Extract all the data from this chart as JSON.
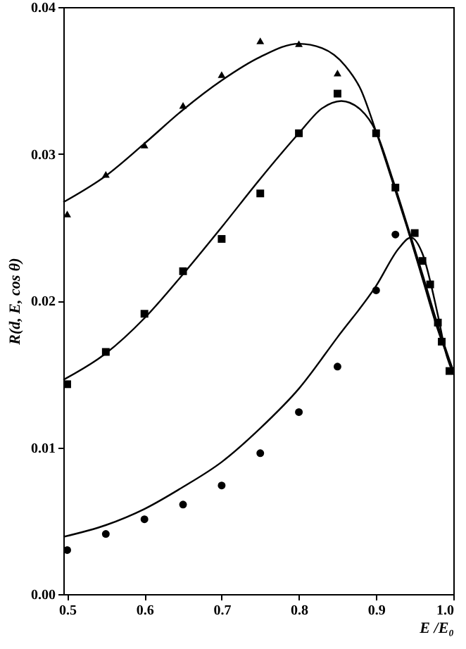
{
  "chart_data": {
    "type": "scatter",
    "xlabel": "E /E₀",
    "ylabel": "R(d, E, cos θ)",
    "xlim": [
      0.495,
      1.0
    ],
    "xticks": [
      0.5,
      0.6,
      0.7,
      0.8,
      0.9,
      {
        "value": 1.0,
        "label": "1.0"
      }
    ],
    "ylim": [
      0,
      0.04
    ],
    "yticks": [
      {
        "value": 0,
        "label": "0.00"
      },
      {
        "value": 0.01,
        "label": "0.01"
      },
      {
        "value": 0.02,
        "label": "0.02"
      },
      {
        "value": 0.03,
        "label": "0.03"
      },
      {
        "value": 0.04,
        "label": "0.04"
      }
    ],
    "grid": false,
    "series": [
      {
        "marker": "triangle",
        "color": "#000000",
        "x": [
          0.5,
          0.55,
          0.6,
          0.65,
          0.7,
          0.75,
          0.8,
          0.85
        ],
        "values": [
          0.0259,
          0.0286,
          0.0306,
          0.0333,
          0.0354,
          0.0377,
          0.0375,
          0.0355
        ]
      },
      {
        "marker": "square",
        "color": "#000000",
        "x": [
          0.5,
          0.55,
          0.6,
          0.65,
          0.7,
          0.75,
          0.8,
          0.85,
          0.9,
          0.925,
          0.95,
          0.96,
          0.97,
          0.98,
          0.985,
          0.995
        ],
        "values": [
          0.0143,
          0.0165,
          0.0191,
          0.022,
          0.0242,
          0.0273,
          0.0314,
          0.0341,
          0.0314,
          0.0277,
          0.0246,
          0.0227,
          0.0211,
          0.0185,
          0.0172,
          0.0152
        ]
      },
      {
        "marker": "circle",
        "color": "#000000",
        "x": [
          0.5,
          0.55,
          0.6,
          0.65,
          0.7,
          0.75,
          0.8,
          0.85,
          0.9,
          0.925
        ],
        "values": [
          0.003,
          0.0041,
          0.0051,
          0.0061,
          0.0074,
          0.0096,
          0.0124,
          0.0155,
          0.0207,
          0.0245
        ]
      },
      {
        "type": "line",
        "marker": "none",
        "line_style": "solid",
        "color": "#000000",
        "x": [
          0.495,
          0.55,
          0.6,
          0.65,
          0.7,
          0.75,
          0.8,
          0.83,
          0.86,
          0.88,
          0.9,
          0.92,
          0.94,
          0.96,
          0.98,
          1.0
        ],
        "values": [
          0.0267,
          0.0285,
          0.0307,
          0.033,
          0.035,
          0.0366,
          0.0375,
          0.0372,
          0.036,
          0.0344,
          0.0315,
          0.0283,
          0.025,
          0.0215,
          0.018,
          0.0152
        ]
      },
      {
        "type": "line",
        "marker": "none",
        "line_style": "solid",
        "color": "#000000",
        "x": [
          0.495,
          0.55,
          0.6,
          0.65,
          0.7,
          0.75,
          0.8,
          0.83,
          0.855,
          0.88,
          0.9,
          0.92,
          0.94,
          0.96,
          0.98,
          1.0
        ],
        "values": [
          0.0146,
          0.0164,
          0.0188,
          0.0218,
          0.025,
          0.0283,
          0.0314,
          0.0331,
          0.0336,
          0.033,
          0.0315,
          0.0285,
          0.0252,
          0.0218,
          0.0183,
          0.0152
        ]
      },
      {
        "type": "line",
        "marker": "none",
        "line_style": "solid",
        "color": "#000000",
        "x": [
          0.495,
          0.55,
          0.6,
          0.65,
          0.7,
          0.75,
          0.8,
          0.85,
          0.9,
          0.93,
          0.945,
          0.96,
          0.98,
          0.99,
          1.0
        ],
        "values": [
          0.0039,
          0.0047,
          0.0058,
          0.0073,
          0.009,
          0.0113,
          0.014,
          0.0175,
          0.021,
          0.0236,
          0.0243,
          0.0232,
          0.019,
          0.0165,
          0.015
        ]
      }
    ]
  }
}
